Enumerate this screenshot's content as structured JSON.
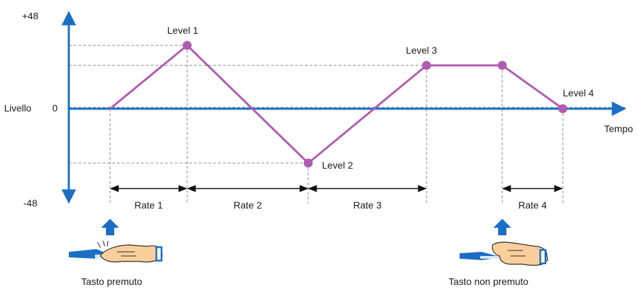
{
  "axes": {
    "y_top": "+48",
    "y_zero": "0",
    "y_bottom": "-48",
    "y_title": "Livello",
    "x_title": "Tempo"
  },
  "levels": {
    "level1": "Level 1",
    "level2": "Level 2",
    "level3": "Level 3",
    "level4": "Level 4"
  },
  "rates": {
    "rate1": "Rate 1",
    "rate2": "Rate 2",
    "rate3": "Rate 3",
    "rate4": "Rate 4"
  },
  "keys": {
    "pressed": "Tasto premuto",
    "released": "Tasto non premuto"
  },
  "colors": {
    "axis": "#1a6fc4",
    "envelope": "#b15bb3",
    "guide": "#888888"
  },
  "icons": {
    "key_pressed": "finger-pressing-key-icon",
    "key_released": "finger-released-key-icon",
    "arrow": "up-arrow-icon"
  }
}
